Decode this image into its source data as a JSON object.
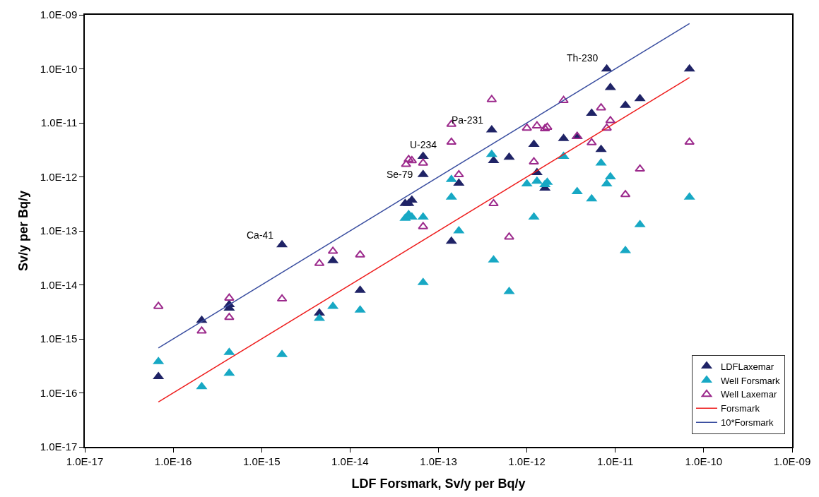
{
  "chart_data": {
    "type": "scatter",
    "xlabel": "LDF Forsmark, Sv/y per Bq/y",
    "ylabel": "Sv/y per Bq/y",
    "log": "xy",
    "grid": false,
    "legend": "bottom right",
    "xlim": [
      1e-17,
      1e-09
    ],
    "ylim": [
      1e-17,
      1e-09
    ],
    "xticks": [
      {
        "value": 1e-17,
        "label": "1.0E-17"
      },
      {
        "value": 1e-16,
        "label": "1.0E-16"
      },
      {
        "value": 1e-15,
        "label": "1.0E-15"
      },
      {
        "value": 1e-14,
        "label": "1.0E-14"
      },
      {
        "value": 1e-13,
        "label": "1.0E-13"
      },
      {
        "value": 1e-12,
        "label": "1.0E-12"
      },
      {
        "value": 1e-11,
        "label": "1.0E-11"
      },
      {
        "value": 1e-10,
        "label": "1.0E-10"
      },
      {
        "value": 1e-09,
        "label": "1.0E-09"
      }
    ],
    "yticks": [
      {
        "value": 1e-17,
        "label": "1.0E-17"
      },
      {
        "value": 1e-16,
        "label": "1.0E-16"
      },
      {
        "value": 1e-15,
        "label": "1.0E-15"
      },
      {
        "value": 1e-14,
        "label": "1.0E-14"
      },
      {
        "value": 1e-13,
        "label": "1.0E-13"
      },
      {
        "value": 1e-12,
        "label": "1.0E-12"
      },
      {
        "value": 1e-11,
        "label": "1.0E-11"
      },
      {
        "value": 1e-10,
        "label": "1.0E-10"
      },
      {
        "value": 1e-09,
        "label": "1.0E-09"
      }
    ],
    "series": [
      {
        "name": "LDFLaxemar",
        "marker": "triangle",
        "color": "#1f2366",
        "x": [
          6.8e-17,
          2.1e-16,
          4.3e-16,
          4.3e-16,
          1.7e-15,
          4.5e-15,
          6.4e-15,
          1.3e-14,
          4.2e-14,
          4.6e-14,
          5e-14,
          6.7e-14,
          6.7e-14,
          1.4e-13,
          1.7e-13,
          4e-13,
          4.2e-13,
          6.3e-13,
          1.2e-12,
          1.3e-12,
          1.6e-12,
          2.6e-12,
          3.7e-12,
          5.4e-12,
          6.9e-12,
          8e-12,
          8.8e-12,
          1.3e-11,
          1.9e-11,
          6.9e-11
        ],
        "values": [
          2e-16,
          2.2e-15,
          4.3e-15,
          3.7e-15,
          5.5e-14,
          3e-15,
          2.8e-14,
          7.9e-15,
          3.2e-13,
          3.2e-13,
          3.7e-13,
          2.4e-12,
          1.1e-12,
          6.4e-14,
          7.6e-13,
          7.4e-12,
          2e-12,
          2.3e-12,
          4e-12,
          1.2e-12,
          6.2e-13,
          5.1e-12,
          5.6e-12,
          1.5e-11,
          3.2e-12,
          9.9e-11,
          4.5e-11,
          2.1e-11,
          2.8e-11,
          9.9e-11
        ]
      },
      {
        "name": "Well Forsmark",
        "marker": "triangle",
        "color": "#17a8c4",
        "x": [
          6.8e-17,
          2.1e-16,
          4.3e-16,
          4.3e-16,
          1.7e-15,
          4.5e-15,
          6.4e-15,
          1.3e-14,
          4.2e-14,
          4.6e-14,
          5e-14,
          6.7e-14,
          6.7e-14,
          1.4e-13,
          1.4e-13,
          1.7e-13,
          4e-13,
          4.2e-13,
          6.3e-13,
          1e-12,
          1.2e-12,
          1.3e-12,
          1.6e-12,
          1.7e-12,
          2.6e-12,
          3.7e-12,
          5.4e-12,
          6.9e-12,
          8e-12,
          8.8e-12,
          1.3e-11,
          1.9e-11,
          6.9e-11
        ],
        "values": [
          3.8e-16,
          1.3e-16,
          5.6e-16,
          2.3e-16,
          5.1e-16,
          2.4e-15,
          4e-15,
          3.4e-15,
          1.7e-13,
          2e-13,
          1.8e-13,
          1.8e-13,
          1.1e-14,
          8.9e-13,
          4.2e-13,
          1e-13,
          2.6e-12,
          2.9e-14,
          7.5e-15,
          7.4e-13,
          1.8e-13,
          8.3e-13,
          7.2e-13,
          7.9e-13,
          2.4e-12,
          5.3e-13,
          3.9e-13,
          1.8e-12,
          7.4e-13,
          1e-12,
          4.3e-14,
          1.3e-13,
          4.2e-13
        ]
      },
      {
        "name": "Well Laxemar",
        "marker": "triangle-open",
        "color": "#9c2a8c",
        "x": [
          6.8e-17,
          2.1e-16,
          4.3e-16,
          4.3e-16,
          1.7e-15,
          4.5e-15,
          6.4e-15,
          1.3e-14,
          4.3e-14,
          4.6e-14,
          5e-14,
          6.7e-14,
          6.7e-14,
          1.4e-13,
          1.4e-13,
          1.7e-13,
          4e-13,
          4.2e-13,
          6.3e-13,
          1e-12,
          1.2e-12,
          1.3e-12,
          1.6e-12,
          1.7e-12,
          2.6e-12,
          3.7e-12,
          5.4e-12,
          6.9e-12,
          8e-12,
          8.8e-12,
          1.3e-11,
          1.9e-11,
          6.9e-11
        ],
        "values": [
          4e-15,
          1.4e-15,
          5.7e-15,
          2.5e-15,
          5.5e-15,
          2.5e-14,
          4.2e-14,
          3.6e-14,
          1.7e-12,
          2.1e-12,
          2e-12,
          1.8e-12,
          1.2e-13,
          9.4e-12,
          4.4e-12,
          1.1e-12,
          2.7e-11,
          3.2e-13,
          7.7e-14,
          8e-12,
          1.9e-12,
          8.8e-12,
          7.8e-12,
          8.3e-12,
          2.6e-11,
          5.6e-12,
          4.3e-12,
          1.9e-11,
          8e-12,
          1.1e-11,
          4.7e-13,
          1.4e-12,
          4.4e-12
        ]
      },
      {
        "name": "Forsmark",
        "type": "line",
        "marker": "none",
        "line_style": "solid",
        "color": "#ee1c1c",
        "x": [
          6.8e-17,
          6.9e-11
        ],
        "values": [
          6.8e-17,
          6.9e-11
        ]
      },
      {
        "name": "10*Forsmark",
        "type": "line",
        "marker": "none",
        "line_style": "solid",
        "color": "#3a4ea0",
        "x": [
          6.8e-17,
          6.9e-11
        ],
        "values": [
          6.8e-16,
          6.9e-10
        ]
      }
    ],
    "annotations": [
      {
        "text": "Ca-41",
        "x": 1.7e-15,
        "y": 5.5e-14
      },
      {
        "text": "Se-79",
        "x": 6.7e-14,
        "y": 1.1e-12
      },
      {
        "text": "U-234",
        "x": 6.7e-14,
        "y": 2.4e-12
      },
      {
        "text": "Pa-231",
        "x": 4e-13,
        "y": 7.4e-12
      },
      {
        "text": "Th-230",
        "x": 8e-12,
        "y": 9.9e-11
      }
    ]
  }
}
